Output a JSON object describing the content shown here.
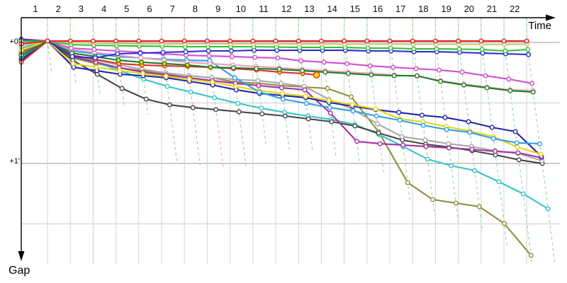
{
  "axes": {
    "x_label": "Time",
    "y_label": "Gap",
    "y_tick_0": "+0'",
    "y_tick_1": "+1'"
  },
  "chart_data": {
    "type": "line",
    "title": "",
    "x_axis": {
      "label": "Time",
      "units": "lap",
      "ticks": [
        1,
        2,
        3,
        4,
        5,
        6,
        7,
        8,
        9,
        10,
        11,
        12,
        13,
        14,
        15,
        16,
        17,
        18,
        19,
        20,
        21,
        22
      ]
    },
    "y_axis": {
      "label": "Gap",
      "tick_labels": [
        "+0'",
        "+1'"
      ],
      "tick_values_seconds": [
        0,
        60
      ],
      "direction": "down"
    },
    "grid": {
      "vertical_per_lap": true,
      "horizontal_half_minute": true
    },
    "legend": "none",
    "series": [
      {
        "name": "car-olive",
        "color": "#8f8f3c",
        "grid_gap_s": 6.0,
        "gaps_s": [
          0,
          8.4,
          11.2,
          13.3,
          14.7,
          16.1,
          17.2,
          18.2,
          20.4,
          21,
          22.1,
          22.8,
          23.5,
          27.7,
          44.9,
          70.2,
          78.6,
          80.4,
          82.1,
          90.5,
          106.3
        ]
      },
      {
        "name": "car-cyan",
        "color": "#35c4c8",
        "grid_gap_s": 3.5,
        "gaps_s": [
          0,
          7,
          10.5,
          14.7,
          18.9,
          22.5,
          25.3,
          28.1,
          30.9,
          33.3,
          35.4,
          37.2,
          38.9,
          41.4,
          46.3,
          52.3,
          58.6,
          61.8,
          64.2,
          69.8,
          75.8,
          83.2
        ]
      },
      {
        "name": "car-black",
        "color": "#454545",
        "grid_gap_s": 8.8,
        "gaps_s": [
          0,
          9.5,
          16.5,
          23.5,
          28.8,
          31.6,
          33,
          34,
          35.1,
          36.1,
          37.2,
          38.6,
          40,
          42.1,
          45.6,
          49.1,
          51.2,
          52.6,
          54.4,
          56.5,
          58.9,
          60.7
        ]
      },
      {
        "name": "car-gray",
        "color": "#a9a9a9",
        "grid_gap_s": 0.7,
        "gaps_s": [
          0,
          7,
          9.5,
          11.9,
          14,
          15.8,
          17.2,
          18.2,
          19,
          19.6,
          21,
          22.5,
          28.8,
          34,
          41,
          47.4,
          49.1,
          50.9,
          52.3,
          54.4,
          55.8,
          59.3
        ]
      },
      {
        "name": "car-purple",
        "color": "#a332a3",
        "grid_gap_s": 5.3,
        "gaps_s": [
          0,
          7.7,
          10.5,
          13.3,
          15.4,
          16.8,
          18.2,
          19.6,
          21,
          22.1,
          23.2,
          24.2,
          35.8,
          49.8,
          50.9,
          51.6,
          52.3,
          53,
          53.7,
          54.7,
          55.4,
          57.9
        ]
      },
      {
        "name": "car-navy",
        "color": "#2424ad",
        "grid_gap_s": 9.8,
        "gaps_s": [
          0,
          13,
          14.7,
          16.5,
          17.2,
          18.2,
          20,
          21.8,
          24.2,
          26,
          27,
          28.1,
          30.5,
          32.3,
          34,
          35.4,
          36.8,
          37.9,
          40,
          42.8,
          44.9,
          57.2
        ]
      },
      {
        "name": "car-yellow",
        "color": "#e3d515",
        "grid_gap_s": 4.6,
        "gaps_s": [
          0,
          11.2,
          13,
          14.7,
          16.1,
          17.5,
          18.9,
          20.4,
          22.5,
          24.6,
          26,
          27.4,
          29.5,
          31.6,
          33.7,
          38.6,
          40,
          42.5,
          44.6,
          47.4,
          52.6,
          56.1
        ]
      },
      {
        "name": "car-lightblue",
        "color": "#2e9fe6",
        "grid_gap_s": 7.7,
        "gaps_s": [
          0,
          4.9,
          6.3,
          7.7,
          8.4,
          9.1,
          9.5,
          9.8,
          18.2,
          25.3,
          28.8,
          30.9,
          33,
          34.7,
          37.2,
          39.3,
          41.8,
          43.9,
          45.3,
          48.4,
          50.5,
          50.9
        ]
      },
      {
        "name": "car-red-retired",
        "color": "#e03028",
        "grid_gap_s": 10.5,
        "gaps_s": [
          0,
          7,
          9.1,
          11.2,
          11.9,
          12.3,
          12.6,
          13,
          13.7,
          14.4,
          15.4,
          16.1
        ],
        "marker_fill": "#ffdf00",
        "dnf": {
          "lap": 12.6,
          "gap_s": 16.8
        }
      },
      {
        "name": "car-pink",
        "color": "#ef9fc0",
        "grid_gap_s": -0.4,
        "gaps_s": [
          0,
          4.2,
          5.6,
          7,
          8.4,
          9.5,
          10.5,
          11.2,
          11.9,
          12.6,
          13.3,
          14,
          14.7,
          15.4,
          16.1,
          16.8,
          17.5,
          19.6,
          21.4,
          22.8,
          24.2,
          24.6
        ]
      },
      {
        "name": "car-darkgreen",
        "color": "#1e7d22",
        "grid_gap_s": 7.0,
        "gaps_s": [
          0,
          6,
          7.7,
          9.5,
          10.5,
          11.2,
          11.9,
          13,
          13.3,
          13.7,
          14,
          14.7,
          15.4,
          16.1,
          16.8,
          17.2,
          17.2,
          20,
          21.8,
          23.2,
          24.6,
          25.3
        ],
        "pit_laps": [
          4,
          5,
          6,
          7,
          8
        ],
        "pit_fill": "#ffdf00"
      },
      {
        "name": "car-magenta",
        "color": "#d14fd1",
        "grid_gap_s": -1.0,
        "gaps_s": [
          0,
          3.5,
          4.2,
          4.9,
          5.6,
          6.3,
          7,
          7.4,
          7.7,
          8.1,
          8.4,
          9.8,
          10.5,
          11.2,
          12.3,
          13,
          13.7,
          14.4,
          15.4,
          17.2,
          18.9,
          21
        ]
      },
      {
        "name": "car-blue",
        "color": "#2d2dd4",
        "grid_gap_s": -0.7,
        "gaps_s": [
          0,
          7.7,
          8.4,
          6.3,
          6,
          5.6,
          5.3,
          4.9,
          4.9,
          4.6,
          4.6,
          4.6,
          4.6,
          4.6,
          4.9,
          4.9,
          5.3,
          5.3,
          5.6,
          6,
          6.3,
          6.7
        ]
      },
      {
        "name": "car-green",
        "color": "#32c032",
        "grid_gap_s": 0.0,
        "gaps_s": [
          0,
          1.8,
          2.1,
          2.3,
          2.5,
          2.6,
          2.8,
          2.8,
          2.8,
          2.8,
          3,
          3.2,
          3.2,
          3.2,
          3.5,
          3.5,
          3.9,
          3.9,
          4,
          4.2,
          4.9,
          4.2
        ]
      },
      {
        "name": "car-khaki",
        "color": "#cdc673",
        "grid_gap_s": 2.5,
        "gaps_s": [
          0,
          0.7,
          1,
          1.2,
          1.3,
          1.4,
          1.4,
          1.4,
          1.4,
          1.4,
          1.4,
          1.4,
          1.4,
          1.5,
          1.5,
          1.5,
          1.6,
          1.6,
          1.6,
          1.7,
          1.7,
          1.5
        ]
      },
      {
        "name": "car-red-leader",
        "color": "#e51c1c",
        "grid_gap_s": 1.4,
        "gaps_s": [
          0,
          0,
          0,
          0,
          0,
          0,
          0,
          0,
          0,
          0,
          0,
          0,
          0,
          0,
          0,
          0,
          0,
          0,
          0,
          0,
          0,
          0
        ]
      }
    ],
    "lap_lines": [
      {
        "lap": 1,
        "color": "#9ddb9d",
        "depth_s": 16.5
      },
      {
        "lap": 2,
        "color": "#9ddb9d",
        "depth_s": 21
      },
      {
        "lap": 3,
        "color": "#9ddb9d",
        "depth_s": 27
      },
      {
        "lap": 4,
        "color": "#9ddb9d",
        "depth_s": 33
      },
      {
        "lap": 5,
        "color": "#9ddb9d",
        "depth_s": 36.5
      },
      {
        "lap": 6,
        "color": "#f5a8a8",
        "depth_s": 60.5
      },
      {
        "lap": 7,
        "color": "#f5a8a8",
        "depth_s": 61.5
      },
      {
        "lap": 8,
        "color": "#f5a8a8",
        "depth_s": 62.5
      },
      {
        "lap": 9,
        "color": "#f5a8a8",
        "depth_s": 63.5
      },
      {
        "lap": 10,
        "color": "#9ddb9d",
        "depth_s": 52.5
      },
      {
        "lap": 11,
        "color": "#9ddb9d",
        "depth_s": 54
      },
      {
        "lap": 12,
        "color": "#9ddb9d",
        "depth_s": 55.5
      },
      {
        "lap": 13,
        "color": "#9ddb9d",
        "depth_s": 57.5
      },
      {
        "lap": 14,
        "color": "#9ddb9d",
        "depth_s": 59.5
      },
      {
        "lap": 15,
        "color": "#9ddb9d",
        "depth_s": 65.5
      },
      {
        "lap": 16,
        "color": "#9ddb9d",
        "depth_s": 79.5
      },
      {
        "lap": 17,
        "color": "#9ddb9d",
        "depth_s": 86.5
      },
      {
        "lap": 18,
        "color": "#9ddb9d",
        "depth_s": 90
      },
      {
        "lap": 19,
        "color": "#9ddb9d",
        "depth_s": 93.5
      },
      {
        "lap": 20,
        "color": "#9ddb9d",
        "depth_s": 102.5
      },
      {
        "lap": 21,
        "color": "#9ddb9d",
        "depth_s": 110.5
      },
      {
        "lap": 22,
        "color": "#9ddb9d",
        "depth_s": 110.5
      }
    ],
    "colors": {
      "axis": "#000000",
      "grid_major": "#999999",
      "grid_minor": "#cccccc",
      "grid_vertical": "#d0d5d0",
      "marker_fill": "#ffffff"
    }
  }
}
